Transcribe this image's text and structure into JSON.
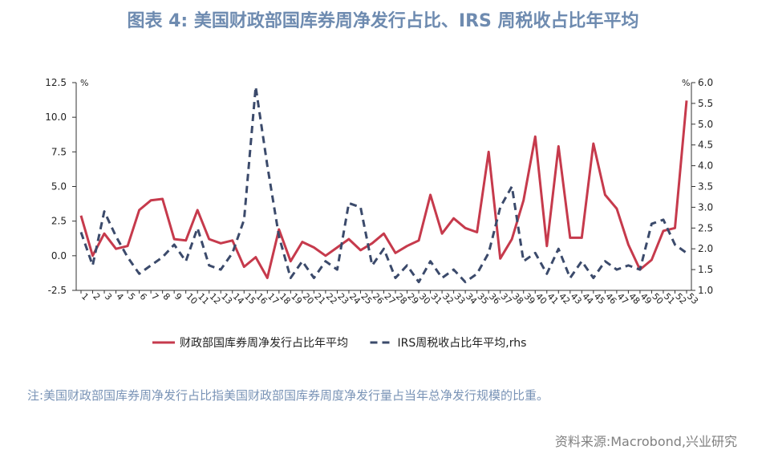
{
  "title": "图表 4:  美国财政部国库券周净发行占比、IRS 周税收占比年平均",
  "note": "注:美国财政部国库券周净发行占比指美国财政部国库券周度净发行量占当年总净发行规模的比重。",
  "source": "资料来源:Macrobond,兴业研究",
  "colors": {
    "series1": "#c63a4c",
    "series2": "#3b4a6b",
    "title": "#6e8bb0",
    "note": "#7993b6",
    "source": "#808080",
    "axis": "#333333"
  },
  "chart_data": {
    "type": "line",
    "title": "",
    "left_axis": {
      "unit": "%",
      "min": -2.5,
      "max": 12.5,
      "ticks": [
        "-2.5",
        "0.0",
        "2.5",
        "5.0",
        "7.5",
        "10.0",
        "12.5"
      ]
    },
    "right_axis": {
      "unit": "%",
      "min": 1.0,
      "max": 6.0,
      "ticks": [
        "1.0",
        "1.5",
        "2.0",
        "2.5",
        "3.0",
        "3.5",
        "4.0",
        "4.5",
        "5.0",
        "5.5",
        "6.0"
      ]
    },
    "x": [
      "1",
      "2",
      "3",
      "4",
      "5",
      "6",
      "7",
      "8",
      "9",
      "10",
      "11",
      "12",
      "13",
      "14",
      "15",
      "16",
      "17",
      "18",
      "19",
      "20",
      "21",
      "22",
      "23",
      "24",
      "25",
      "26",
      "27",
      "28",
      "29",
      "30",
      "31",
      "32",
      "33",
      "34",
      "35",
      "36",
      "37",
      "38",
      "39",
      "40",
      "41",
      "42",
      "43",
      "44",
      "45",
      "46",
      "47",
      "48",
      "49",
      "50",
      "51",
      "52",
      "53"
    ],
    "legend": {
      "position": "bottom"
    },
    "series": [
      {
        "name": "财政部国库券周净发行占比年平均",
        "axis": "left",
        "style": "solid",
        "values": [
          2.9,
          0.0,
          1.6,
          0.5,
          0.7,
          3.3,
          4.0,
          4.1,
          1.2,
          1.1,
          3.3,
          1.2,
          0.9,
          1.1,
          -0.8,
          -0.1,
          -1.6,
          1.9,
          -0.4,
          1.0,
          0.6,
          0.0,
          0.6,
          1.2,
          0.4,
          0.9,
          1.6,
          0.2,
          0.7,
          1.1,
          4.4,
          1.6,
          2.7,
          2.0,
          1.7,
          7.5,
          -0.2,
          1.2,
          4.0,
          8.6,
          0.7,
          7.9,
          1.3,
          1.3,
          8.1,
          4.4,
          3.4,
          0.8,
          -1.0,
          -0.3,
          1.8,
          2.0,
          11.2
        ]
      },
      {
        "name": "IRS周税收占比年平均,rhs",
        "axis": "right",
        "style": "dashed",
        "values": [
          2.4,
          1.6,
          2.9,
          2.3,
          1.8,
          1.4,
          1.6,
          1.8,
          2.1,
          1.7,
          2.5,
          1.6,
          1.5,
          1.9,
          2.7,
          5.9,
          4.0,
          2.3,
          1.3,
          1.7,
          1.3,
          1.7,
          1.5,
          3.1,
          3.0,
          1.6,
          2.0,
          1.3,
          1.6,
          1.2,
          1.7,
          1.3,
          1.5,
          1.2,
          1.4,
          1.9,
          3.0,
          3.5,
          1.7,
          1.9,
          1.4,
          2.0,
          1.3,
          1.7,
          1.3,
          1.7,
          1.5,
          1.6,
          1.5,
          2.6,
          2.7,
          2.1,
          1.9
        ]
      }
    ]
  }
}
